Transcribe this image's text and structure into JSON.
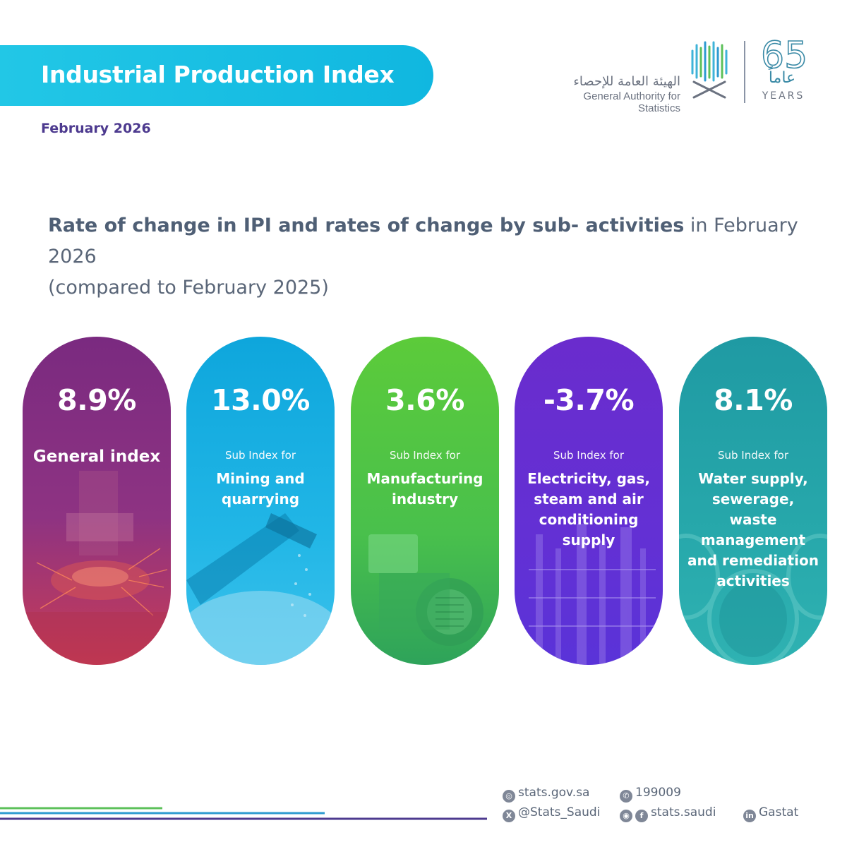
{
  "header": {
    "title": "Industrial Production Index",
    "period": "February 2026"
  },
  "logo": {
    "arabic_name": "الهيئة العامة للإحصاء",
    "english_name": "General Authority for Statistics",
    "anniversary_number": "65",
    "anniversary_arabic": "عاماً",
    "anniversary_english": "YEARS"
  },
  "heading": {
    "bold_part": "Rate of change in IPI and rates of change by sub- activities",
    "regular_part": " in February 2026",
    "line2": "(compared to February 2025)"
  },
  "indicators": [
    {
      "value": "8.9%",
      "sub_label": "",
      "name": "General index",
      "color_top": "#7a2a80",
      "color_bottom": "#d0405a"
    },
    {
      "value": "13.0%",
      "sub_label": "Sub Index for",
      "name": "Mining and quarrying",
      "color_top": "#10a6dc",
      "color_bottom": "#38c0ea"
    },
    {
      "value": "3.6%",
      "sub_label": "Sub Index for",
      "name": "Manufacturing industry",
      "color_top": "#56c93f",
      "color_bottom": "#2fa85a"
    },
    {
      "value": "-3.7%",
      "sub_label": "Sub Index for",
      "name": "Electricity, gas, steam and air conditioning supply",
      "color_top": "#6a2fd0",
      "color_bottom": "#5e2fd6"
    },
    {
      "value": "8.1%",
      "sub_label": "Sub Index for",
      "name": "Water supply, sewerage, waste management and remediation activities",
      "color_top": "#1d9fa6",
      "color_bottom": "#2fb0b0"
    }
  ],
  "footer": {
    "website": "stats.gov.sa",
    "phone": "199009",
    "twitter": "@Stats_Saudi",
    "social": "stats.saudi",
    "linkedin": "Gastat"
  }
}
